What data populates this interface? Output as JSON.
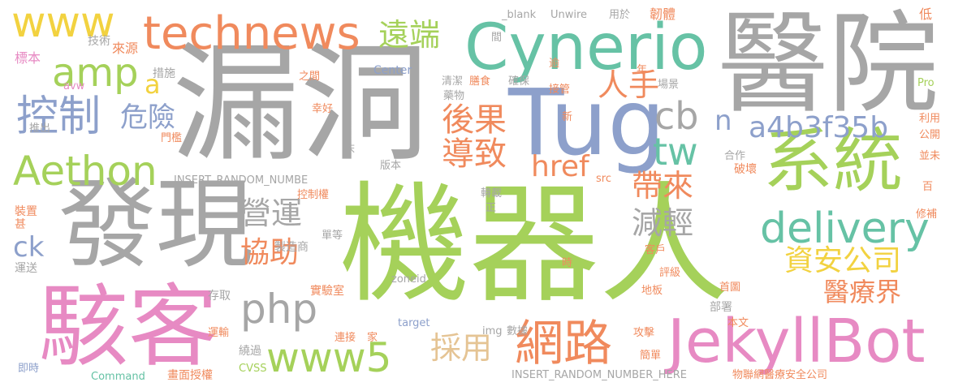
{
  "palette": {
    "gray": "#a6a6a6",
    "green": "#a5d15a",
    "orange": "#f08a5d",
    "pink": "#e78ac3",
    "blue": "#8da0cb",
    "teal": "#66c2a5",
    "yellow": "#f2d240",
    "tan": "#e5c494"
  },
  "words": [
    {
      "id": "w1",
      "text": "機器人"
    },
    {
      "id": "w2",
      "text": "漏洞"
    },
    {
      "id": "w3",
      "text": "醫院"
    },
    {
      "id": "w4",
      "text": "發現"
    },
    {
      "id": "w5",
      "text": "駭客"
    },
    {
      "id": "w6",
      "text": "Tug"
    },
    {
      "id": "w7",
      "text": "Cynerio"
    },
    {
      "id": "w8",
      "text": "系統"
    },
    {
      "id": "w9",
      "text": "JekyllBot"
    },
    {
      "id": "w10",
      "text": "technews"
    },
    {
      "id": "w11",
      "text": "www"
    },
    {
      "id": "w12",
      "text": "Aethon"
    },
    {
      "id": "w13",
      "text": "delivery"
    },
    {
      "id": "w14",
      "text": "網路"
    },
    {
      "id": "w15",
      "text": "www5"
    },
    {
      "id": "w16",
      "text": "php"
    },
    {
      "id": "w17",
      "text": "控制"
    },
    {
      "id": "w18",
      "text": "amp"
    },
    {
      "id": "w19",
      "text": "遠端"
    },
    {
      "id": "w20",
      "text": "人手"
    },
    {
      "id": "w21",
      "text": "cb"
    },
    {
      "id": "w22",
      "text": "tw"
    },
    {
      "id": "w23",
      "text": "後果"
    },
    {
      "id": "w24",
      "text": "導致"
    },
    {
      "id": "w25",
      "text": "a4b3f35b"
    },
    {
      "id": "w26",
      "text": "危險"
    },
    {
      "id": "w27",
      "text": "帶來"
    },
    {
      "id": "w28",
      "text": "營運"
    },
    {
      "id": "w29",
      "text": "減輕"
    },
    {
      "id": "w30",
      "text": "協助"
    },
    {
      "id": "w31",
      "text": "資安公司"
    },
    {
      "id": "w32",
      "text": "醫療界"
    },
    {
      "id": "w33",
      "text": "採用"
    },
    {
      "id": "w34",
      "text": "href"
    },
    {
      "id": "w35",
      "text": "n"
    },
    {
      "id": "w36",
      "text": "a"
    },
    {
      "id": "w37",
      "text": "ck"
    },
    {
      "id": "w38",
      "text": "_blank"
    },
    {
      "id": "w39",
      "text": "Unwire"
    },
    {
      "id": "w40",
      "text": "用於"
    },
    {
      "id": "w41",
      "text": "韌體"
    },
    {
      "id": "w42",
      "text": "低"
    },
    {
      "id": "w43",
      "text": "間"
    },
    {
      "id": "w44",
      "text": "技術"
    },
    {
      "id": "w45",
      "text": "來源"
    },
    {
      "id": "w46",
      "text": "標本"
    },
    {
      "id": "w47",
      "text": "措施"
    },
    {
      "id": "w48",
      "text": "avw"
    },
    {
      "id": "w49",
      "text": "之間"
    },
    {
      "id": "w50",
      "text": "Center"
    },
    {
      "id": "w51",
      "text": "清潔"
    },
    {
      "id": "w52",
      "text": "膳食"
    },
    {
      "id": "w53",
      "text": "確保"
    },
    {
      "id": "w54",
      "text": "接管"
    },
    {
      "id": "w55",
      "text": "場景"
    },
    {
      "id": "w56",
      "text": "Pro"
    },
    {
      "id": "w57",
      "text": "逾"
    },
    {
      "id": "w58",
      "text": "年"
    },
    {
      "id": "w59",
      "text": "藥物"
    },
    {
      "id": "w60",
      "text": "幸好"
    },
    {
      "id": "w61",
      "text": "新"
    },
    {
      "id": "w62",
      "text": "利用"
    },
    {
      "id": "w63",
      "text": "公開"
    },
    {
      "id": "w64",
      "text": "推出"
    },
    {
      "id": "w65",
      "text": "門檻"
    },
    {
      "id": "w66",
      "text": "合作"
    },
    {
      "id": "w67",
      "text": "並未"
    },
    {
      "id": "w68",
      "text": "床"
    },
    {
      "id": "w69",
      "text": "版本"
    },
    {
      "id": "w70",
      "text": "破壞"
    },
    {
      "id": "w71",
      "text": "INSERT_RANDOM_NUMBE"
    },
    {
      "id": "w72",
      "text": "src"
    },
    {
      "id": "w73",
      "text": "百"
    },
    {
      "id": "w74",
      "text": "控制權"
    },
    {
      "id": "w75",
      "text": "轉載"
    },
    {
      "id": "w76",
      "text": "正"
    },
    {
      "id": "w77",
      "text": "裝置"
    },
    {
      "id": "w78",
      "text": "甚"
    },
    {
      "id": "w79",
      "text": "修補"
    },
    {
      "id": "w80",
      "text": "單等"
    },
    {
      "id": "w81",
      "text": "製造商"
    },
    {
      "id": "w82",
      "text": "客戶"
    },
    {
      "id": "w83",
      "text": "運送"
    },
    {
      "id": "w84",
      "text": "時"
    },
    {
      "id": "w85",
      "text": "評級"
    },
    {
      "id": "w86",
      "text": "zoneid"
    },
    {
      "id": "w87",
      "text": "存取"
    },
    {
      "id": "w88",
      "text": "實驗室"
    },
    {
      "id": "w89",
      "text": "地板"
    },
    {
      "id": "w90",
      "text": "首圖"
    },
    {
      "id": "w91",
      "text": "部署"
    },
    {
      "id": "w92",
      "text": "運輸"
    },
    {
      "id": "w93",
      "text": "target"
    },
    {
      "id": "w94",
      "text": "img"
    },
    {
      "id": "w95",
      "text": "數據"
    },
    {
      "id": "w96",
      "text": "連接"
    },
    {
      "id": "w97",
      "text": "家"
    },
    {
      "id": "w98",
      "text": "攻擊"
    },
    {
      "id": "w99",
      "text": "本文"
    },
    {
      "id": "w100",
      "text": "繞過"
    },
    {
      "id": "w101",
      "text": "簡單"
    },
    {
      "id": "w102",
      "text": "即時"
    },
    {
      "id": "w103",
      "text": "Command"
    },
    {
      "id": "w104",
      "text": "畫面授權"
    },
    {
      "id": "w105",
      "text": "CVSS"
    },
    {
      "id": "w106",
      "text": "INSERT_RANDOM_NUMBER_HERE"
    },
    {
      "id": "w107",
      "text": "物聯網醫療安全公司"
    }
  ]
}
